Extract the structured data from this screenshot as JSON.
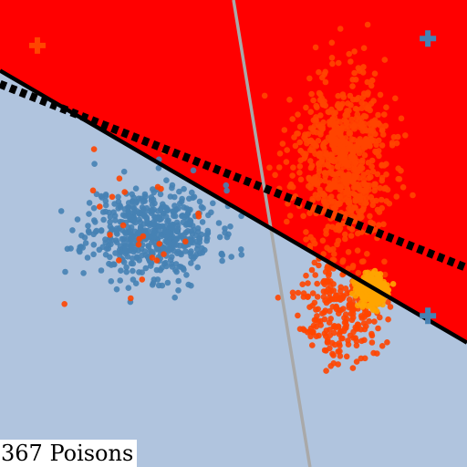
{
  "chart_data": {
    "type": "scatter",
    "title": "",
    "xlabel": "",
    "ylabel": "",
    "xlim": [
      -4,
      4
    ],
    "ylim": [
      -4,
      4
    ],
    "grid": false,
    "legend": "none",
    "annotation": "367 Poisons",
    "colors": {
      "region_positive": "#ff0000",
      "region_negative": "#b0c4de",
      "class_negative": "#4682b4",
      "class_positive": "#ff4500",
      "poison": "#ffa500",
      "clean_boundary": "#000000",
      "poisoned_boundary": "#000000",
      "reference_line": "#a9a9a9"
    },
    "lines": [
      {
        "id": "decision-boundary",
        "style": "solid",
        "x": [
          -4.0,
          4.0
        ],
        "y": [
          2.79,
          -1.87
        ]
      },
      {
        "id": "poisoned-boundary",
        "style": "dotted",
        "x": [
          -4.0,
          4.0
        ],
        "y": [
          2.56,
          -0.59
        ]
      },
      {
        "id": "reference-line",
        "style": "solid",
        "x": [
          -0.0,
          1.31
        ],
        "y": [
          4.0,
          -4.0
        ]
      }
    ],
    "class_centers": [
      {
        "id": "negative",
        "marker": "+",
        "x": 3.33,
        "y": 3.34
      },
      {
        "id": "positive",
        "marker": "+",
        "x": -3.36,
        "y": 3.22
      },
      {
        "id": "negative-alt",
        "marker": "+",
        "x": 3.33,
        "y": -1.41
      }
    ],
    "clusters": [
      {
        "name": "negative",
        "center": [
          -1.4,
          0.03
        ],
        "spread": [
          0.55,
          0.4
        ],
        "count": 560,
        "seed": 11
      },
      {
        "name": "positive-upper",
        "center": [
          1.85,
          1.2
        ],
        "spread": [
          0.42,
          0.75
        ],
        "count": 700,
        "seed": 23
      },
      {
        "name": "positive-lower",
        "center": [
          1.85,
          -1.28
        ],
        "spread": [
          0.35,
          0.45
        ],
        "count": 260,
        "seed": 37
      },
      {
        "name": "poison",
        "center": [
          2.38,
          -0.97
        ],
        "spread": [
          0.13,
          0.12
        ],
        "count": 367,
        "seed": 53
      },
      {
        "name": "positive-outliers",
        "center": [
          -1.4,
          0.03
        ],
        "spread": [
          0.7,
          0.6
        ],
        "count": 25,
        "seed": 71
      }
    ]
  }
}
